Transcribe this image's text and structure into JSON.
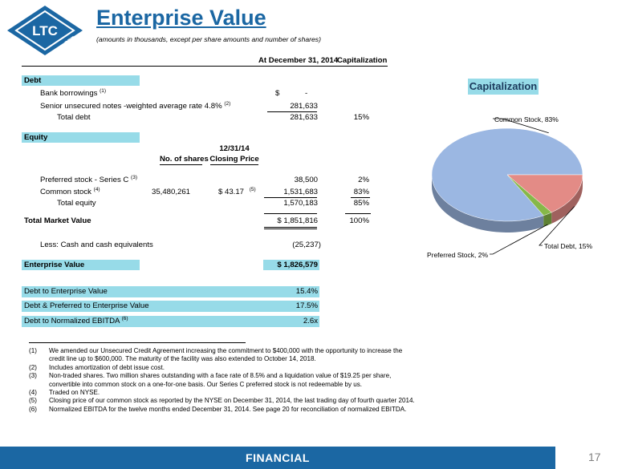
{
  "header": {
    "logo_text": "LTC",
    "logo_subtext": "REIT",
    "title": "Enterprise Value",
    "subtitle": "(amounts in thousands, except per share amounts and number of shares)"
  },
  "table": {
    "col_header_date": "At December 31, 2014",
    "col_header_cap": "Capitalization",
    "debt": {
      "section_label": "Debt",
      "bank_label": "Bank borrowings",
      "bank_note": "(1)",
      "bank_currency": "$",
      "bank_value": "-",
      "notes_label": "Senior unsecured notes -weighted average rate 4.8%",
      "notes_note": "(2)",
      "notes_value": "281,633",
      "total_label": "Total debt",
      "total_value": "281,633",
      "total_pct": "15%"
    },
    "equity": {
      "section_label": "Equity",
      "shares_header": "No. of shares",
      "price_header_line1": "12/31/14",
      "price_header_line2": "Closing Price",
      "preferred_label": "Preferred stock - Series C",
      "preferred_note": "(3)",
      "preferred_value": "38,500",
      "preferred_pct": "2%",
      "common_label": "Common stock",
      "common_note": "(4)",
      "common_shares": "35,480,261",
      "common_price": "$  43.17",
      "common_price_note": "(5)",
      "common_value": "1,531,683",
      "common_pct": "83%",
      "total_label": "Total equity",
      "total_value": "1,570,183",
      "total_pct": "85%"
    },
    "market": {
      "label": "Total Market Value",
      "value": "$ 1,851,816",
      "pct": "100%"
    },
    "cash": {
      "label": "Less:  Cash and cash equivalents",
      "value": "(25,237)"
    },
    "ev": {
      "label": "Enterprise Value",
      "value": "$ 1,826,579"
    },
    "ratios": [
      {
        "label": "Debt to Enterprise Value",
        "note": "",
        "value": "15.4%"
      },
      {
        "label": "Debt & Preferred to Enterprise Value",
        "note": "",
        "value": "17.5%"
      },
      {
        "label": "Debt to Normalized EBITDA",
        "note": "(6)",
        "value": "2.6x"
      }
    ]
  },
  "footnotes": [
    {
      "num": "(1)",
      "lines": [
        "We amended our Unsecured Credit Agreement increasing the commitment to $400,000 with the opportunity to increase the",
        "credit line up to $600,000.  The maturity of the facility was also extended to October 14, 2018."
      ]
    },
    {
      "num": "(2)",
      "lines": [
        "Includes amortization of debt issue cost."
      ]
    },
    {
      "num": "(3)",
      "lines": [
        "Non-traded shares.  Two million shares outstanding with a face rate of 8.5% and a liquidation value of $19.25 per share,",
        "convertible into common stock on a one-for-one basis.  Our Series C preferred stock is not redeemable by us."
      ]
    },
    {
      "num": "(4)",
      "lines": [
        "Traded on NYSE."
      ]
    },
    {
      "num": "(5)",
      "lines": [
        "Closing price of our common stock as reported by the NYSE on December 31, 2014, the last trading day of fourth quarter 2014."
      ]
    },
    {
      "num": "(6)",
      "lines": [
        "Normalized EBITDA for the twelve months ended December 31, 2014.  See page 20 for reconciliation of normalized EBITDA."
      ]
    }
  ],
  "chart": {
    "title": "Capitalization",
    "colors": {
      "common": "#9bb7e2",
      "debt": "#e38b86",
      "preferred": "#86b849"
    }
  },
  "chart_data": {
    "type": "pie",
    "title": "Capitalization",
    "categories": [
      "Common Stock",
      "Total Debt",
      "Preferred Stock"
    ],
    "values": [
      83,
      15,
      2
    ],
    "labels": [
      "Common Stock, 83%",
      "Total Debt, 15%",
      "Preferred Stock, 2%"
    ]
  },
  "footer": {
    "label": "FINANCIAL",
    "page": "17"
  }
}
